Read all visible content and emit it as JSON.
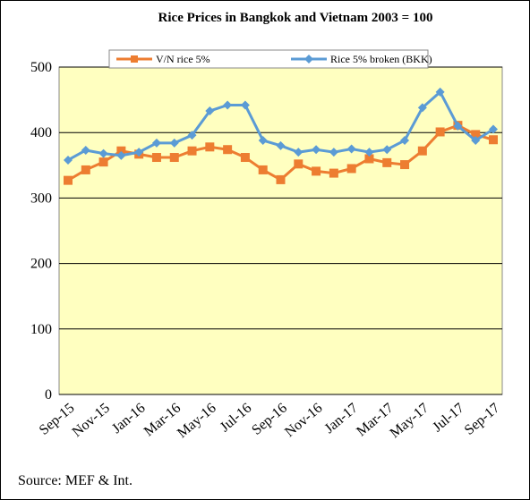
{
  "chart_data": {
    "type": "line",
    "title": "Rice Prices in Bangkok and Vietnam 2003 = 100",
    "source": "Source: MEF & Int.",
    "categories": [
      "Sep-15",
      null,
      "Nov-15",
      null,
      "Jan-16",
      null,
      "Mar-16",
      null,
      "May-16",
      null,
      "Jul-16",
      null,
      "Sep-16",
      null,
      "Nov-16",
      null,
      "Jan-17",
      null,
      "Mar-17",
      null,
      "May-17",
      null,
      "Jul-17",
      null,
      "Sep-17"
    ],
    "series": [
      {
        "name": "V/N rice 5%",
        "color": "#ed7d31",
        "marker": "square",
        "values": [
          327,
          343,
          355,
          372,
          367,
          362,
          362,
          372,
          378,
          374,
          362,
          343,
          328,
          352,
          341,
          338,
          345,
          360,
          354,
          351,
          372,
          401,
          411,
          397,
          389
        ]
      },
      {
        "name": "Rice 5% broken (BKK)",
        "color": "#5b9bd5",
        "marker": "diamond",
        "values": [
          358,
          373,
          368,
          365,
          370,
          384,
          384,
          396,
          433,
          442,
          442,
          388,
          380,
          370,
          374,
          370,
          375,
          370,
          374,
          388,
          438,
          462,
          410,
          388,
          405
        ]
      }
    ],
    "ylim": [
      0,
      500
    ],
    "yticks": [
      0,
      100,
      200,
      300,
      400,
      500
    ],
    "grid": true,
    "plot_color": "#ffffc0"
  }
}
